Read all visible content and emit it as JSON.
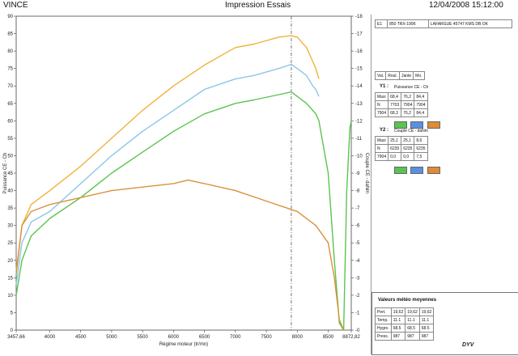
{
  "header": {
    "left": "VINCE",
    "center": "Impression Essais",
    "right": "12/04/2008 15:12:00"
  },
  "panel": {
    "top_row": [
      "E1",
      "850 TRX-1996",
      "LAFARGUE 45747 KMS DB OK"
    ],
    "cols": [
      "Val.",
      "Roul.",
      "Jante",
      "Mo."
    ],
    "y1": {
      "label": "Y1 :",
      "name": "Puissance CE - Ch",
      "rows": [
        [
          "Maxi",
          "68,4",
          "76,2",
          "84,4"
        ],
        [
          "N",
          "7703",
          "7904",
          "7904"
        ],
        [
          "7904",
          "68,3",
          "76,2",
          "84,4"
        ]
      ]
    },
    "y2": {
      "label": "Y2 :",
      "name": "Couple CE - daNm",
      "rows": [
        [
          "Maxi",
          "25,1",
          "25,1",
          "8,6"
        ],
        [
          "N",
          "6235",
          "6235",
          "6235"
        ],
        [
          "7904",
          "0,0",
          "0,0",
          "7,5"
        ]
      ]
    },
    "swatches": [
      "#59c44f",
      "#5b8fe0",
      "#e08b37"
    ],
    "meteo": {
      "title": "Valeurs météo moyennes",
      "rows": [
        [
          "Pert.",
          "19,62",
          "19,62",
          "19,62"
        ],
        [
          "Temp.",
          "11.1",
          "11.1",
          "11.1"
        ],
        [
          "Hygro.",
          "68.5",
          "68.5",
          "68.5"
        ],
        [
          "Press.",
          "987",
          "987",
          "987"
        ]
      ]
    },
    "logo": "DYV"
  },
  "chart_data": {
    "type": "line",
    "xlabel": "Régime moteur (tr/mn)",
    "ylabel": "Puissance CE - Ch",
    "y2label": "Couple CE - daNm",
    "xlim": [
      3457.66,
      8872.82
    ],
    "ylim": [
      0,
      90
    ],
    "y2lim": [
      0,
      18
    ],
    "x_ticks": [
      "3457,66",
      "4000",
      "4500",
      "5000",
      "5500",
      "6000",
      "6500",
      "7000",
      "7500",
      "8000",
      "8500",
      "8872,82"
    ],
    "y_ticks": [
      "0",
      "5",
      "10",
      "15",
      "20",
      "25",
      "30",
      "35",
      "40",
      "45",
      "50",
      "55",
      "60",
      "65",
      "70",
      "75",
      "80",
      "85",
      "90"
    ],
    "y2_ticks": [
      "0",
      "1",
      "2",
      "3",
      "4",
      "5",
      "6",
      "7",
      "8",
      "9",
      "10",
      "11",
      "12",
      "13",
      "14",
      "15",
      "16",
      "17",
      "18"
    ],
    "marker_x": 7904,
    "series": [
      {
        "name": "Mo.",
        "color": "#f0b23a",
        "x": [
          3457.66,
          3550,
          3700,
          4000,
          4500,
          5000,
          5500,
          6000,
          6500,
          7000,
          7300,
          7700,
          7904,
          8000,
          8150,
          8250,
          8300,
          8350
        ],
        "y": [
          17,
          30,
          36,
          40,
          47,
          55,
          63,
          70,
          76,
          81,
          82,
          84,
          84.4,
          84,
          81,
          77,
          75,
          72
        ]
      },
      {
        "name": "Jante",
        "color": "#8cc6e8",
        "x": [
          3457.66,
          3550,
          3700,
          4000,
          4500,
          5000,
          5500,
          6000,
          6500,
          7000,
          7300,
          7700,
          7904,
          8000,
          8150,
          8250,
          8300,
          8350
        ],
        "y": [
          13,
          25,
          31,
          34,
          42,
          50,
          57,
          63,
          69,
          72,
          73,
          75,
          76.2,
          75,
          73,
          70,
          69,
          67
        ]
      },
      {
        "name": "Roul.",
        "color": "#5bc44f",
        "x": [
          3457.66,
          3550,
          3700,
          4000,
          4500,
          5000,
          5500,
          6000,
          6500,
          7000,
          7300,
          7700,
          7904,
          8000,
          8150,
          8250,
          8300,
          8350,
          8500,
          8600,
          8680,
          8750,
          8800,
          8850,
          8872.82
        ],
        "y": [
          10,
          20,
          27,
          32,
          38,
          45,
          51,
          57,
          62,
          65,
          66,
          67.5,
          68.3,
          67,
          65,
          63,
          62,
          60,
          45,
          20,
          2,
          0,
          40,
          58,
          60
        ]
      },
      {
        "name": "Couple",
        "color": "#d9913c",
        "x": [
          3457.66,
          3550,
          3700,
          4000,
          4500,
          5000,
          5500,
          6000,
          6235,
          6500,
          7000,
          7500,
          8000,
          8300,
          8500,
          8600,
          8680,
          8750
        ],
        "y": [
          16,
          30,
          34,
          36,
          38,
          40,
          41,
          42,
          43,
          42,
          40,
          37,
          34,
          30,
          25,
          15,
          3,
          0
        ]
      }
    ]
  }
}
